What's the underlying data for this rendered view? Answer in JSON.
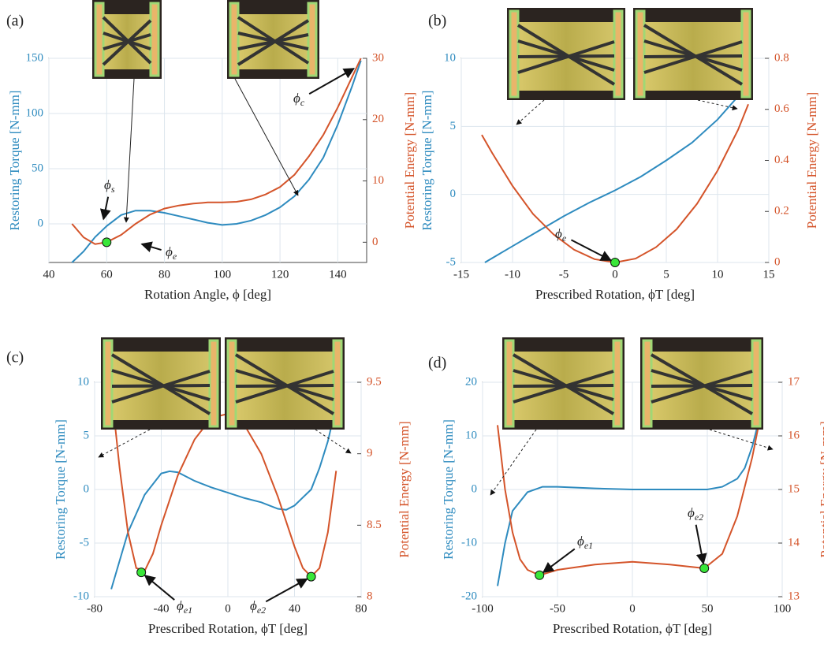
{
  "chart_data": [
    {
      "type": "line",
      "panel": "(a)",
      "xlabel": "Rotation Angle, ϕ [deg]",
      "ylabel": "Restoring Torque [N-mm]",
      "y2label": "Potential Energy [N-mm]",
      "xlim": [
        40,
        150
      ],
      "xticks": [
        40,
        60,
        80,
        100,
        120,
        140
      ],
      "ylim": [
        -35,
        150
      ],
      "yticks": [
        0,
        50,
        100,
        150
      ],
      "y2lim": [
        -3.3,
        30
      ],
      "y2ticks": [
        0,
        10,
        20,
        30
      ],
      "grid": true,
      "series": [
        {
          "color": "#2e8bbf",
          "axis": "y",
          "x": [
            48,
            52,
            56,
            60,
            65,
            70,
            75,
            80,
            85,
            90,
            95,
            100,
            105,
            110,
            115,
            120,
            125,
            130,
            135,
            140,
            145,
            148
          ],
          "values": [
            -35,
            -25,
            -12,
            -2,
            8,
            12,
            12,
            10,
            7,
            4,
            1,
            -1,
            0,
            3,
            8,
            15,
            25,
            40,
            60,
            90,
            125,
            148
          ]
        },
        {
          "color": "#d4542a",
          "axis": "y2",
          "x": [
            48,
            52,
            56,
            60,
            65,
            70,
            75,
            80,
            85,
            90,
            95,
            100,
            105,
            110,
            115,
            120,
            125,
            130,
            135,
            140,
            145,
            148
          ],
          "values": [
            3,
            0.8,
            -0.3,
            0,
            1.2,
            3,
            4.5,
            5.5,
            6,
            6.3,
            6.5,
            6.5,
            6.6,
            7,
            7.8,
            9,
            11,
            14,
            17.5,
            22,
            27,
            30
          ]
        }
      ],
      "point_color": "#39e639",
      "points": [
        {
          "x": 60,
          "y": 0
        }
      ],
      "annotations": [
        {
          "text": "ϕ",
          "sub": "s"
        },
        {
          "text": "ϕ",
          "sub": "e"
        },
        {
          "text": "ϕ",
          "sub": "c"
        }
      ]
    },
    {
      "type": "line",
      "panel": "(b)",
      "xlabel": "Prescribed Rotation, ϕT [deg]",
      "ylabel": "Restoring Torque [N-mm]",
      "y2label": "Potential Energy [N-mm]",
      "xlim": [
        -15,
        15
      ],
      "xticks": [
        -15,
        -10,
        -5,
        0,
        5,
        10,
        15
      ],
      "ylim": [
        -5,
        10
      ],
      "yticks": [
        -5,
        0,
        5,
        10
      ],
      "y2lim": [
        0,
        0.8
      ],
      "y2ticks": [
        0,
        0.2,
        0.4,
        0.6,
        0.8
      ],
      "grid": true,
      "series": [
        {
          "color": "#2e8bbf",
          "axis": "y",
          "x": [
            -12.7,
            -10,
            -7.5,
            -5,
            -2.5,
            0,
            2.5,
            5,
            7.5,
            10,
            12,
            13
          ],
          "values": [
            -5,
            -3.8,
            -2.7,
            -1.6,
            -0.6,
            0.3,
            1.3,
            2.5,
            3.8,
            5.5,
            7.2,
            8
          ]
        },
        {
          "color": "#d4542a",
          "axis": "y2",
          "x": [
            -13,
            -12,
            -10,
            -8,
            -6,
            -4,
            -2,
            0,
            2,
            4,
            6,
            8,
            10,
            12,
            13
          ],
          "values": [
            0.5,
            0.43,
            0.3,
            0.19,
            0.11,
            0.05,
            0.013,
            0,
            0.015,
            0.06,
            0.13,
            0.23,
            0.36,
            0.52,
            0.62
          ]
        }
      ],
      "point_color": "#39e639",
      "points": [
        {
          "x": 0,
          "y": 0
        }
      ],
      "annotations": [
        {
          "text": "ϕ",
          "sub": "e"
        }
      ]
    },
    {
      "type": "line",
      "panel": "(c)",
      "xlabel": "Prescribed Rotation, ϕT [deg]",
      "ylabel": "Restoring Torque [N-mm]",
      "y2label": "Potential Energy [N-mm]",
      "xlim": [
        -80,
        80
      ],
      "xticks": [
        -80,
        -40,
        0,
        40,
        80
      ],
      "ylim": [
        -10,
        10
      ],
      "yticks": [
        -10,
        -5,
        0,
        5,
        10
      ],
      "y2lim": [
        8,
        9.5
      ],
      "y2ticks": [
        8,
        8.5,
        9,
        9.5
      ],
      "grid": true,
      "series": [
        {
          "color": "#2e8bbf",
          "axis": "y",
          "x": [
            -70,
            -60,
            -50,
            -40,
            -35,
            -30,
            -20,
            -10,
            0,
            10,
            20,
            30,
            35,
            40,
            50,
            55,
            60,
            65
          ],
          "values": [
            -9.3,
            -4,
            -0.5,
            1.5,
            1.7,
            1.6,
            0.8,
            0.2,
            -0.3,
            -0.8,
            -1.2,
            -1.8,
            -1.9,
            -1.5,
            0,
            2,
            4.5,
            7.8
          ]
        },
        {
          "color": "#d4542a",
          "axis": "y2",
          "x": [
            -70,
            -65,
            -60,
            -55,
            -50,
            -45,
            -40,
            -30,
            -20,
            -10,
            0,
            10,
            20,
            30,
            40,
            45,
            50,
            55,
            60,
            65
          ],
          "values": [
            9.45,
            8.9,
            8.45,
            8.2,
            8.18,
            8.3,
            8.5,
            8.85,
            9.1,
            9.25,
            9.28,
            9.2,
            9,
            8.7,
            8.35,
            8.2,
            8.14,
            8.2,
            8.45,
            8.88
          ]
        }
      ],
      "point_color": "#39e639",
      "points": [
        {
          "x": -52,
          "y": 8.17
        },
        {
          "x": 50,
          "y": 8.14
        }
      ],
      "annotations": [
        {
          "text": "ϕ",
          "sub": "e1"
        },
        {
          "text": "ϕ",
          "sub": "e2"
        }
      ]
    },
    {
      "type": "line",
      "panel": "(d)",
      "xlabel": "Prescribed Rotation, ϕT [deg]",
      "ylabel": "Restoring Torque [N-mm]",
      "y2label": "Potential Energy [N-mm]",
      "xlim": [
        -100,
        100
      ],
      "xticks": [
        -100,
        -50,
        0,
        50,
        100
      ],
      "ylim": [
        -20,
        20
      ],
      "yticks": [
        -20,
        -10,
        0,
        10,
        20
      ],
      "y2lim": [
        13,
        17
      ],
      "y2ticks": [
        13,
        14,
        15,
        16,
        17
      ],
      "grid": true,
      "series": [
        {
          "color": "#2e8bbf",
          "axis": "y",
          "x": [
            -90,
            -85,
            -80,
            -70,
            -60,
            -50,
            -25,
            0,
            25,
            50,
            60,
            70,
            75,
            80,
            85
          ],
          "values": [
            -18,
            -10,
            -4,
            -0.5,
            0.5,
            0.5,
            0.2,
            0,
            0,
            0,
            0.5,
            2,
            4,
            8,
            13.5
          ]
        },
        {
          "color": "#d4542a",
          "axis": "y2",
          "x": [
            -90,
            -85,
            -80,
            -75,
            -70,
            -62,
            -50,
            -25,
            0,
            25,
            48,
            60,
            70,
            80,
            85
          ],
          "values": [
            16.2,
            15,
            14.2,
            13.7,
            13.5,
            13.4,
            13.5,
            13.6,
            13.65,
            13.6,
            13.53,
            13.8,
            14.5,
            15.6,
            16.3
          ]
        }
      ],
      "point_color": "#39e639",
      "points": [
        {
          "x": -62,
          "y": 13.4
        },
        {
          "x": 48,
          "y": 13.53
        }
      ],
      "annotations": [
        {
          "text": "ϕ",
          "sub": "e1"
        },
        {
          "text": "ϕ",
          "sub": "e2"
        }
      ]
    }
  ]
}
